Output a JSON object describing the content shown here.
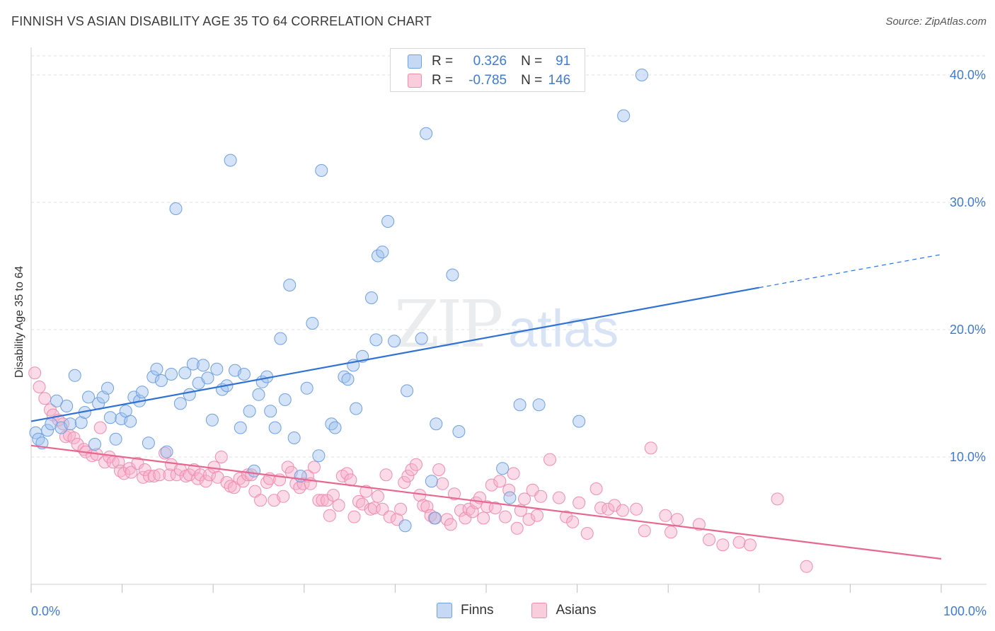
{
  "title": "FINNISH VS ASIAN DISABILITY AGE 35 TO 64 CORRELATION CHART",
  "source": "Source: ZipAtlas.com",
  "watermark": {
    "zip": "ZIP",
    "atlas": "atlas"
  },
  "legend": {
    "rows": [
      {
        "r_label": "R =",
        "r_value": "0.326",
        "n_label": "N =",
        "n_value": "91"
      },
      {
        "r_label": "R =",
        "r_value": "-0.785",
        "n_label": "N =",
        "n_value": "146"
      }
    ]
  },
  "bottom_legend": {
    "finns": "Finns",
    "asians": "Asians"
  },
  "chart_data": {
    "type": "scatter",
    "ylabel": "Disability Age 35 to 64",
    "xlim": [
      0,
      100
    ],
    "ylim": [
      0,
      42
    ],
    "x_tick_labels": [
      "0.0%",
      "100.0%"
    ],
    "y_ticks": [
      10,
      20,
      30,
      40
    ],
    "y_tick_labels": [
      "10.0%",
      "20.0%",
      "30.0%",
      "40.0%"
    ],
    "grid": true,
    "colors": {
      "finns": "#6fa0e0",
      "asians": "#f08db0",
      "finns_line": "#2f72d3",
      "asians_line": "#e6688f",
      "tick_text": "#3f7bd0"
    },
    "series": [
      {
        "name": "Finns",
        "trend": {
          "x0": 0,
          "y0": 12.8,
          "x1": 80,
          "y1": 23.3,
          "dash_to_x": 100,
          "dash_to_y": 25.9
        },
        "points": [
          [
            0.5,
            11.9
          ],
          [
            0.8,
            11.4
          ],
          [
            1.2,
            11.1
          ],
          [
            1.8,
            12.1
          ],
          [
            2.2,
            12.6
          ],
          [
            2.8,
            14.4
          ],
          [
            3.3,
            12.3
          ],
          [
            3.9,
            14.0
          ],
          [
            4.3,
            12.6
          ],
          [
            4.8,
            16.4
          ],
          [
            5.5,
            12.7
          ],
          [
            5.9,
            13.5
          ],
          [
            6.3,
            14.7
          ],
          [
            7.0,
            11.0
          ],
          [
            7.4,
            14.2
          ],
          [
            7.9,
            14.7
          ],
          [
            8.4,
            15.4
          ],
          [
            8.7,
            13.1
          ],
          [
            9.3,
            11.4
          ],
          [
            9.9,
            13.0
          ],
          [
            10.4,
            13.6
          ],
          [
            10.9,
            12.8
          ],
          [
            11.3,
            14.7
          ],
          [
            11.9,
            14.4
          ],
          [
            12.2,
            15.1
          ],
          [
            12.9,
            11.1
          ],
          [
            13.4,
            16.3
          ],
          [
            13.8,
            16.9
          ],
          [
            14.3,
            16.0
          ],
          [
            14.9,
            10.4
          ],
          [
            15.4,
            16.5
          ],
          [
            15.9,
            29.5
          ],
          [
            16.4,
            14.2
          ],
          [
            16.9,
            16.6
          ],
          [
            17.4,
            14.9
          ],
          [
            17.8,
            17.3
          ],
          [
            18.4,
            15.8
          ],
          [
            18.9,
            17.2
          ],
          [
            19.4,
            16.2
          ],
          [
            19.9,
            12.9
          ],
          [
            20.4,
            16.9
          ],
          [
            21.0,
            15.3
          ],
          [
            21.5,
            15.6
          ],
          [
            21.9,
            33.3
          ],
          [
            22.4,
            16.8
          ],
          [
            23.0,
            12.3
          ],
          [
            23.4,
            16.5
          ],
          [
            24.0,
            13.6
          ],
          [
            24.5,
            8.9
          ],
          [
            25.0,
            14.9
          ],
          [
            25.4,
            15.9
          ],
          [
            25.9,
            16.3
          ],
          [
            26.3,
            13.6
          ],
          [
            26.8,
            12.3
          ],
          [
            27.4,
            19.3
          ],
          [
            27.9,
            14.5
          ],
          [
            28.4,
            23.5
          ],
          [
            28.9,
            11.5
          ],
          [
            29.6,
            8.5
          ],
          [
            30.3,
            15.4
          ],
          [
            30.9,
            20.5
          ],
          [
            31.6,
            10.1
          ],
          [
            31.9,
            32.5
          ],
          [
            33.0,
            12.6
          ],
          [
            33.4,
            12.3
          ],
          [
            34.4,
            16.3
          ],
          [
            34.8,
            16.1
          ],
          [
            35.4,
            17.2
          ],
          [
            35.7,
            13.8
          ],
          [
            36.4,
            17.9
          ],
          [
            37.4,
            22.5
          ],
          [
            37.9,
            19.2
          ],
          [
            38.1,
            25.8
          ],
          [
            38.6,
            26.1
          ],
          [
            39.2,
            28.5
          ],
          [
            39.9,
            19.1
          ],
          [
            41.3,
            15.2
          ],
          [
            41.1,
            4.6
          ],
          [
            43.4,
            35.4
          ],
          [
            42.9,
            19.3
          ],
          [
            44.0,
            8.1
          ],
          [
            44.5,
            12.6
          ],
          [
            44.4,
            5.2
          ],
          [
            47.0,
            12.0
          ],
          [
            46.3,
            24.3
          ],
          [
            51.8,
            9.1
          ],
          [
            52.6,
            6.8
          ],
          [
            53.7,
            14.1
          ],
          [
            55.8,
            14.1
          ],
          [
            60.2,
            12.8
          ],
          [
            65.1,
            36.8
          ],
          [
            67.1,
            40.0
          ]
        ]
      },
      {
        "name": "Asians",
        "trend": {
          "x0": 0,
          "y0": 10.9,
          "x1": 100,
          "y1": 2.0
        },
        "points": [
          [
            0.4,
            16.6
          ],
          [
            0.9,
            15.5
          ],
          [
            1.5,
            14.6
          ],
          [
            2.1,
            13.7
          ],
          [
            2.4,
            13.3
          ],
          [
            3.0,
            12.9
          ],
          [
            3.5,
            12.6
          ],
          [
            3.8,
            11.6
          ],
          [
            4.2,
            11.7
          ],
          [
            4.7,
            11.5
          ],
          [
            5.1,
            11.0
          ],
          [
            5.8,
            10.6
          ],
          [
            6.0,
            10.4
          ],
          [
            6.7,
            10.1
          ],
          [
            7.2,
            10.2
          ],
          [
            7.6,
            12.3
          ],
          [
            8.1,
            9.6
          ],
          [
            8.6,
            10.0
          ],
          [
            9.0,
            9.6
          ],
          [
            9.6,
            9.6
          ],
          [
            9.8,
            8.9
          ],
          [
            10.2,
            8.7
          ],
          [
            10.8,
            9.1
          ],
          [
            11.0,
            8.8
          ],
          [
            11.7,
            9.5
          ],
          [
            12.3,
            8.4
          ],
          [
            12.5,
            9.0
          ],
          [
            13.0,
            8.5
          ],
          [
            13.5,
            8.5
          ],
          [
            14.1,
            8.6
          ],
          [
            14.7,
            10.3
          ],
          [
            15.2,
            8.6
          ],
          [
            15.4,
            9.4
          ],
          [
            16.0,
            8.6
          ],
          [
            16.4,
            9.0
          ],
          [
            17.0,
            8.5
          ],
          [
            17.4,
            8.6
          ],
          [
            17.9,
            9.0
          ],
          [
            18.3,
            8.3
          ],
          [
            18.6,
            8.6
          ],
          [
            19.2,
            8.1
          ],
          [
            19.6,
            8.6
          ],
          [
            20.1,
            9.2
          ],
          [
            20.5,
            8.4
          ],
          [
            20.9,
            10.0
          ],
          [
            21.5,
            8.0
          ],
          [
            21.9,
            7.7
          ],
          [
            22.3,
            7.6
          ],
          [
            22.9,
            8.3
          ],
          [
            23.3,
            8.1
          ],
          [
            23.8,
            8.6
          ],
          [
            24.2,
            8.6
          ],
          [
            24.6,
            7.3
          ],
          [
            25.2,
            6.6
          ],
          [
            25.9,
            8.0
          ],
          [
            26.2,
            8.3
          ],
          [
            26.7,
            6.6
          ],
          [
            27.3,
            8.2
          ],
          [
            27.7,
            6.9
          ],
          [
            28.2,
            9.2
          ],
          [
            28.6,
            8.8
          ],
          [
            29.1,
            7.9
          ],
          [
            29.5,
            7.6
          ],
          [
            29.9,
            7.9
          ],
          [
            30.4,
            8.5
          ],
          [
            30.7,
            7.9
          ],
          [
            31.1,
            9.2
          ],
          [
            31.6,
            6.6
          ],
          [
            32.0,
            6.6
          ],
          [
            32.5,
            6.6
          ],
          [
            32.8,
            5.4
          ],
          [
            33.2,
            7.0
          ],
          [
            33.8,
            6.2
          ],
          [
            34.2,
            8.5
          ],
          [
            34.7,
            8.7
          ],
          [
            35.1,
            8.2
          ],
          [
            35.5,
            5.3
          ],
          [
            36.0,
            6.5
          ],
          [
            36.4,
            6.3
          ],
          [
            36.8,
            7.3
          ],
          [
            37.3,
            5.9
          ],
          [
            37.7,
            6.0
          ],
          [
            38.1,
            6.9
          ],
          [
            38.6,
            5.9
          ],
          [
            39.0,
            8.6
          ],
          [
            39.4,
            5.3
          ],
          [
            40.2,
            5.1
          ],
          [
            40.6,
            5.9
          ],
          [
            41.0,
            8.0
          ],
          [
            41.4,
            8.5
          ],
          [
            41.8,
            9.0
          ],
          [
            42.3,
            9.4
          ],
          [
            42.7,
            7.0
          ],
          [
            43.1,
            6.2
          ],
          [
            43.5,
            6.1
          ],
          [
            43.9,
            5.4
          ],
          [
            44.3,
            5.2
          ],
          [
            44.8,
            9.0
          ],
          [
            45.2,
            7.9
          ],
          [
            45.7,
            5.1
          ],
          [
            46.1,
            4.7
          ],
          [
            46.5,
            7.1
          ],
          [
            47.2,
            5.8
          ],
          [
            47.7,
            5.2
          ],
          [
            48.1,
            5.9
          ],
          [
            48.5,
            5.7
          ],
          [
            48.9,
            6.4
          ],
          [
            49.3,
            6.8
          ],
          [
            49.7,
            5.2
          ],
          [
            50.1,
            6.1
          ],
          [
            50.6,
            7.8
          ],
          [
            51.0,
            6.0
          ],
          [
            51.5,
            8.1
          ],
          [
            52.1,
            5.3
          ],
          [
            52.5,
            7.4
          ],
          [
            53.0,
            8.7
          ],
          [
            53.4,
            4.4
          ],
          [
            53.8,
            5.8
          ],
          [
            54.2,
            6.7
          ],
          [
            54.7,
            5.1
          ],
          [
            55.1,
            7.4
          ],
          [
            55.6,
            5.4
          ],
          [
            56.0,
            6.9
          ],
          [
            57.0,
            9.8
          ],
          [
            58.0,
            6.8
          ],
          [
            58.8,
            5.3
          ],
          [
            59.5,
            4.9
          ],
          [
            60.2,
            6.4
          ],
          [
            61.1,
            4.0
          ],
          [
            62.1,
            7.5
          ],
          [
            62.6,
            6.0
          ],
          [
            63.4,
            5.9
          ],
          [
            64.1,
            6.2
          ],
          [
            65.0,
            5.8
          ],
          [
            66.5,
            5.9
          ],
          [
            67.4,
            4.2
          ],
          [
            68.1,
            10.7
          ],
          [
            69.7,
            5.4
          ],
          [
            70.3,
            4.1
          ],
          [
            71.0,
            5.1
          ],
          [
            73.4,
            4.7
          ],
          [
            74.5,
            3.5
          ],
          [
            76.0,
            3.1
          ],
          [
            77.8,
            3.3
          ],
          [
            79.0,
            3.1
          ],
          [
            82.0,
            6.7
          ],
          [
            85.2,
            1.4
          ]
        ]
      }
    ]
  }
}
